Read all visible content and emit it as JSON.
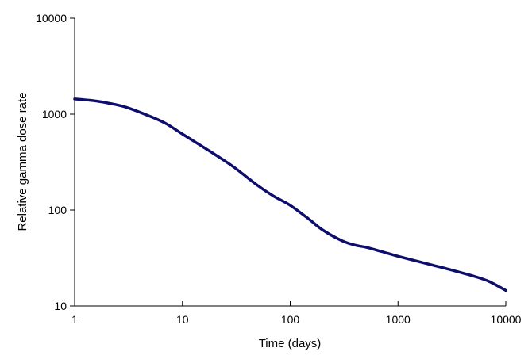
{
  "chart_data": {
    "type": "line",
    "title": "",
    "xlabel": "Time (days)",
    "ylabel": "Relative gamma dose rate",
    "xscale": "log",
    "yscale": "log",
    "xlim": [
      1,
      10000
    ],
    "ylim": [
      10,
      10000
    ],
    "grid": false,
    "legend": "none",
    "x_ticks": [
      1,
      10,
      100,
      1000,
      10000
    ],
    "x_tick_labels": [
      "1",
      "10",
      "100",
      "1000",
      "10000"
    ],
    "y_ticks": [
      10,
      100,
      1000,
      10000
    ],
    "y_tick_labels": [
      "10",
      "100",
      "1000",
      "10000"
    ],
    "series": [
      {
        "color": "#0d0d6b",
        "x": [
          1,
          1.5,
          2,
          3,
          5,
          7,
          10,
          20,
          30,
          50,
          70,
          100,
          150,
          200,
          300,
          400,
          500,
          700,
          1000,
          2000,
          3000,
          5000,
          7000,
          10000
        ],
        "y": [
          1440,
          1380,
          1310,
          1180,
          950,
          800,
          620,
          380,
          280,
          180,
          140,
          112,
          80,
          62,
          48,
          43,
          41,
          37,
          33,
          27,
          24,
          20.5,
          18,
          14.5
        ]
      }
    ]
  }
}
